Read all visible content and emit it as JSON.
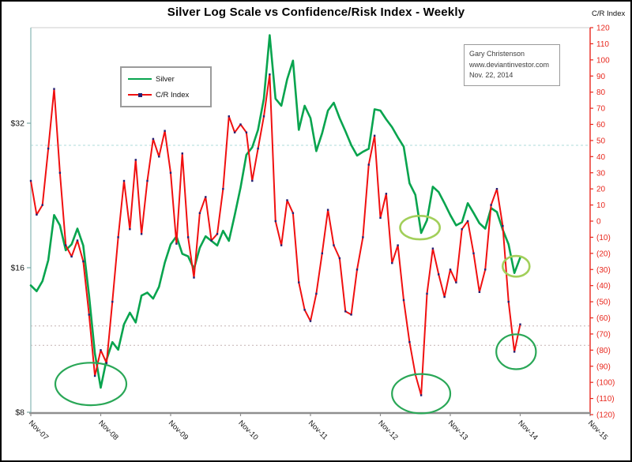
{
  "title": "Silver Log Scale vs Confidence/Risk Index - Weekly",
  "right_axis_title": "C/R Index",
  "legend": {
    "items": [
      {
        "label": "Silver"
      },
      {
        "label": "C/R Index"
      }
    ]
  },
  "annotation": {
    "line1": "Gary Christenson",
    "line2": "www.deviantinvestor.com",
    "line3": "Nov. 22, 2014"
  },
  "colors": {
    "silver_line": "#08a44e",
    "cr_line": "#f01010",
    "cr_marker": "#232275",
    "right_axis": "#e8281e",
    "left_axis": "#a5c8c6",
    "bottom_axis": "#8f8f8f",
    "top_border": "#cccccc",
    "teal_ref": "#aedbd8",
    "gray_ref": "#c3b2b2",
    "ellipse_dark": "#2aa757",
    "ellipse_light": "#a2cf5a",
    "text": "#111111"
  },
  "chart_data": {
    "type": "line",
    "title": "Silver Log Scale vs Confidence/Risk Index - Weekly",
    "x_unit": "months since Nov-2007",
    "x_axis": {
      "tick_labels": [
        "Nov-07",
        "Nov-08",
        "Nov-09",
        "Nov-10",
        "Nov-11",
        "Nov-12",
        "Nov-13",
        "Nov-14",
        "Nov-15"
      ],
      "tick_months": [
        0,
        12,
        24,
        36,
        48,
        60,
        72,
        84,
        96
      ],
      "range_months": [
        0,
        96
      ]
    },
    "left_axis": {
      "scale": "log2",
      "tick_labels": [
        "$8",
        "$16",
        "$32"
      ],
      "tick_values": [
        8,
        16,
        32
      ],
      "top_value_approx": 51
    },
    "right_axis": {
      "min": -120,
      "max": 120,
      "step": 10,
      "tick_labels": [
        "120",
        "110",
        "100",
        "90",
        "80",
        "70",
        "60",
        "50",
        "40",
        "30",
        "20",
        "10",
        "0",
        "(10)",
        "(20)",
        "(30)",
        "(40)",
        "(50)",
        "(60)",
        "(70)",
        "(80)",
        "(90)",
        "(100)",
        "(110)",
        "(120)"
      ]
    },
    "reference_lines": [
      {
        "axis": "right",
        "value": 47,
        "color_key": "teal_ref",
        "dash": "3,3"
      },
      {
        "axis": "right",
        "value": -65,
        "color_key": "gray_ref",
        "dash": "2,3"
      },
      {
        "axis": "right",
        "value": -77,
        "color_key": "gray_ref",
        "dash": "2,3"
      }
    ],
    "series": [
      {
        "name": "Silver",
        "axis": "left",
        "color_key": "silver_line",
        "points_are": "monthly from Nov-2007 to Nov-2014 (USD per oz, log scale)",
        "values": [
          14.7,
          14.3,
          15.0,
          16.6,
          20.6,
          19.6,
          17.4,
          17.9,
          19.3,
          17.8,
          14.0,
          10.6,
          9.0,
          10.3,
          11.2,
          10.8,
          12.2,
          12.9,
          12.3,
          14.0,
          14.2,
          13.8,
          14.6,
          16.4,
          17.9,
          18.6,
          17.1,
          16.9,
          15.9,
          17.6,
          18.6,
          18.2,
          17.8,
          19.1,
          18.2,
          20.6,
          23.5,
          27.5,
          28.5,
          31.0,
          36.0,
          48.8,
          36.0,
          34.8,
          39.5,
          43.2,
          31.0,
          34.8,
          32.8,
          28.0,
          30.5,
          34.0,
          35.3,
          32.8,
          30.8,
          28.8,
          27.4,
          27.9,
          28.3,
          34.2,
          34.0,
          32.6,
          31.4,
          29.9,
          28.6,
          24.0,
          22.7,
          18.9,
          20.1,
          23.6,
          23.0,
          21.8,
          20.6,
          19.6,
          19.9,
          21.8,
          20.8,
          19.8,
          19.3,
          21.3,
          20.9,
          19.2,
          17.9,
          15.6,
          16.8
        ]
      },
      {
        "name": "C/R Index",
        "axis": "right",
        "color_key": "cr_line",
        "marker_color_key": "cr_marker",
        "points_are": "monthly from Nov-2007 to Nov-2014 (index units)",
        "values": [
          25,
          4,
          10,
          45,
          82,
          30,
          -15,
          -22,
          -12,
          -25,
          -58,
          -96,
          -80,
          -88,
          -50,
          -10,
          25,
          -5,
          38,
          -8,
          25,
          51,
          40,
          56,
          30,
          -14,
          42,
          -10,
          -35,
          5,
          15,
          -12,
          -8,
          20,
          65,
          55,
          60,
          55,
          25,
          45,
          65,
          91,
          0,
          -15,
          13,
          5,
          -38,
          -55,
          -62,
          -45,
          -20,
          7,
          -15,
          -23,
          -56,
          -58,
          -30,
          -10,
          35,
          53,
          2,
          17,
          -26,
          -15,
          -49,
          -75,
          -95,
          -108,
          -45,
          -17,
          -33,
          -47,
          -30,
          -38,
          -5,
          0,
          -20,
          -44,
          -30,
          10,
          20,
          -3,
          -50,
          -81,
          -64
        ]
      }
    ],
    "highlight_ellipses": [
      {
        "name": "lows-2008",
        "month": 10.3,
        "cr_center": -101,
        "rx_months": 6.1,
        "ry_cr": 13.2,
        "color_key": "ellipse_dark",
        "width": 2.2
      },
      {
        "name": "cr-low-2013",
        "month": 67.0,
        "cr_center": -107,
        "rx_months": 5.0,
        "ry_cr": 12.2,
        "color_key": "ellipse_dark",
        "width": 2.2
      },
      {
        "name": "cr-low-2014",
        "month": 83.3,
        "cr_center": -81,
        "rx_months": 3.4,
        "ry_cr": 10.8,
        "color_key": "ellipse_dark",
        "width": 2.2
      },
      {
        "name": "silver-dip-2013",
        "month": 66.8,
        "cr_center": -4,
        "rx_months": 3.4,
        "ry_cr": 7.3,
        "color_key": "ellipse_light",
        "width": 2.6
      },
      {
        "name": "silver-low-2014",
        "month": 83.3,
        "cr_center": -28,
        "rx_months": 2.3,
        "ry_cr": 6.4,
        "color_key": "ellipse_light",
        "width": 2.6
      }
    ],
    "legend_position": "upper-left-inside",
    "grid": "off"
  }
}
